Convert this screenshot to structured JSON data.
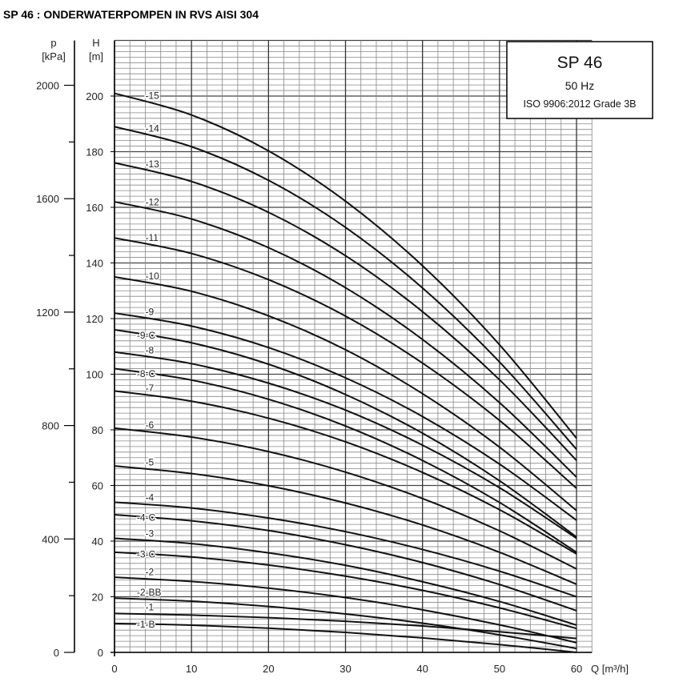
{
  "page_title": "SP 46 : ONDERWATERPOMPEN IN RVS AISI 304",
  "chart_data": {
    "type": "line",
    "title": "",
    "legend_box": {
      "model": "SP 46",
      "frequency": "50 Hz",
      "standard": "ISO 9906:2012 Grade 3B",
      "placement": "top-right"
    },
    "xlabel": "Q [m³/h]",
    "ylabel": "H [m]",
    "y2label": "p [kPa]",
    "xlim": [
      0,
      60
    ],
    "ylim": [
      0,
      210
    ],
    "xticks": [
      "0",
      "10",
      "20",
      "30",
      "40",
      "50",
      "60"
    ],
    "yticks": [
      "0",
      "20",
      "40",
      "60",
      "80",
      "100",
      "120",
      "140",
      "160",
      "180",
      "200"
    ],
    "pticks": [
      "0",
      "400",
      "800",
      "1200",
      "1600",
      "2000"
    ],
    "grid": true,
    "x": [
      0,
      10,
      20,
      30,
      40,
      50,
      60
    ],
    "series": [
      {
        "name": "-15",
        "values": [
          201,
          193.2,
          180.3,
          162.2,
          139,
          110.6,
          77
        ]
      },
      {
        "name": "-14",
        "values": [
          189,
          181.8,
          169.7,
          152.8,
          131,
          104.4,
          73
        ]
      },
      {
        "name": "-13",
        "values": [
          176,
          169.3,
          158.2,
          142.6,
          122.5,
          98,
          69
        ]
      },
      {
        "name": "-12",
        "values": [
          162,
          155.8,
          145.5,
          131.1,
          112.5,
          89.8,
          63
        ]
      },
      {
        "name": "-11",
        "values": [
          149,
          143.4,
          134,
          120.9,
          104,
          83.4,
          59
        ]
      },
      {
        "name": "-10",
        "values": [
          135,
          129.8,
          121,
          108.8,
          93,
          73.8,
          51
        ]
      },
      {
        "name": "-9",
        "values": [
          122,
          117.3,
          109.6,
          98.7,
          84.8,
          67.7,
          47.5
        ]
      },
      {
        "name": "-9-C",
        "values": [
          116,
          111.3,
          103.6,
          92.7,
          78.8,
          61.7,
          41.5
        ]
      },
      {
        "name": "-8",
        "values": [
          108,
          103.8,
          96.8,
          87.1,
          74.5,
          59.2,
          41
        ]
      },
      {
        "name": "-8-C",
        "values": [
          102,
          97.9,
          91,
          81.4,
          69,
          53.9,
          36
        ]
      },
      {
        "name": "-7",
        "values": [
          94,
          90.3,
          84.2,
          75.7,
          64.7,
          51.3,
          35.4
        ]
      },
      {
        "name": "-6",
        "values": [
          80.6,
          77.4,
          72.2,
          64.8,
          55.3,
          43.7,
          30
        ]
      },
      {
        "name": "-5",
        "values": [
          67,
          64.3,
          59.9,
          53.7,
          45.8,
          36,
          24.5
        ]
      },
      {
        "name": "-4",
        "values": [
          54,
          51.9,
          48.3,
          43.4,
          37,
          29.2,
          20
        ]
      },
      {
        "name": "-4-C",
        "values": [
          49.5,
          47.3,
          43.8,
          38.7,
          32.3,
          24.4,
          15
        ]
      },
      {
        "name": "-3",
        "values": [
          41,
          39.1,
          35.8,
          31.3,
          25.4,
          18.3,
          9.8
        ]
      },
      {
        "name": "-3-C",
        "values": [
          36,
          34.3,
          31.4,
          27.4,
          22.3,
          16,
          8.6
        ]
      },
      {
        "name": "-2",
        "values": [
          27,
          25.5,
          23.1,
          19.7,
          15.3,
          9.9,
          3.5
        ]
      },
      {
        "name": "-2-BB",
        "values": [
          19.5,
          18.4,
          16.5,
          13.8,
          10.5,
          6.3,
          1.4
        ]
      },
      {
        "name": "-1",
        "values": [
          14,
          13.4,
          12.5,
          11.2,
          9.5,
          7.4,
          5
        ]
      },
      {
        "name": "-1-B",
        "values": [
          10.4,
          9.8,
          8.7,
          7.2,
          5.2,
          2.8,
          0
        ]
      }
    ]
  }
}
